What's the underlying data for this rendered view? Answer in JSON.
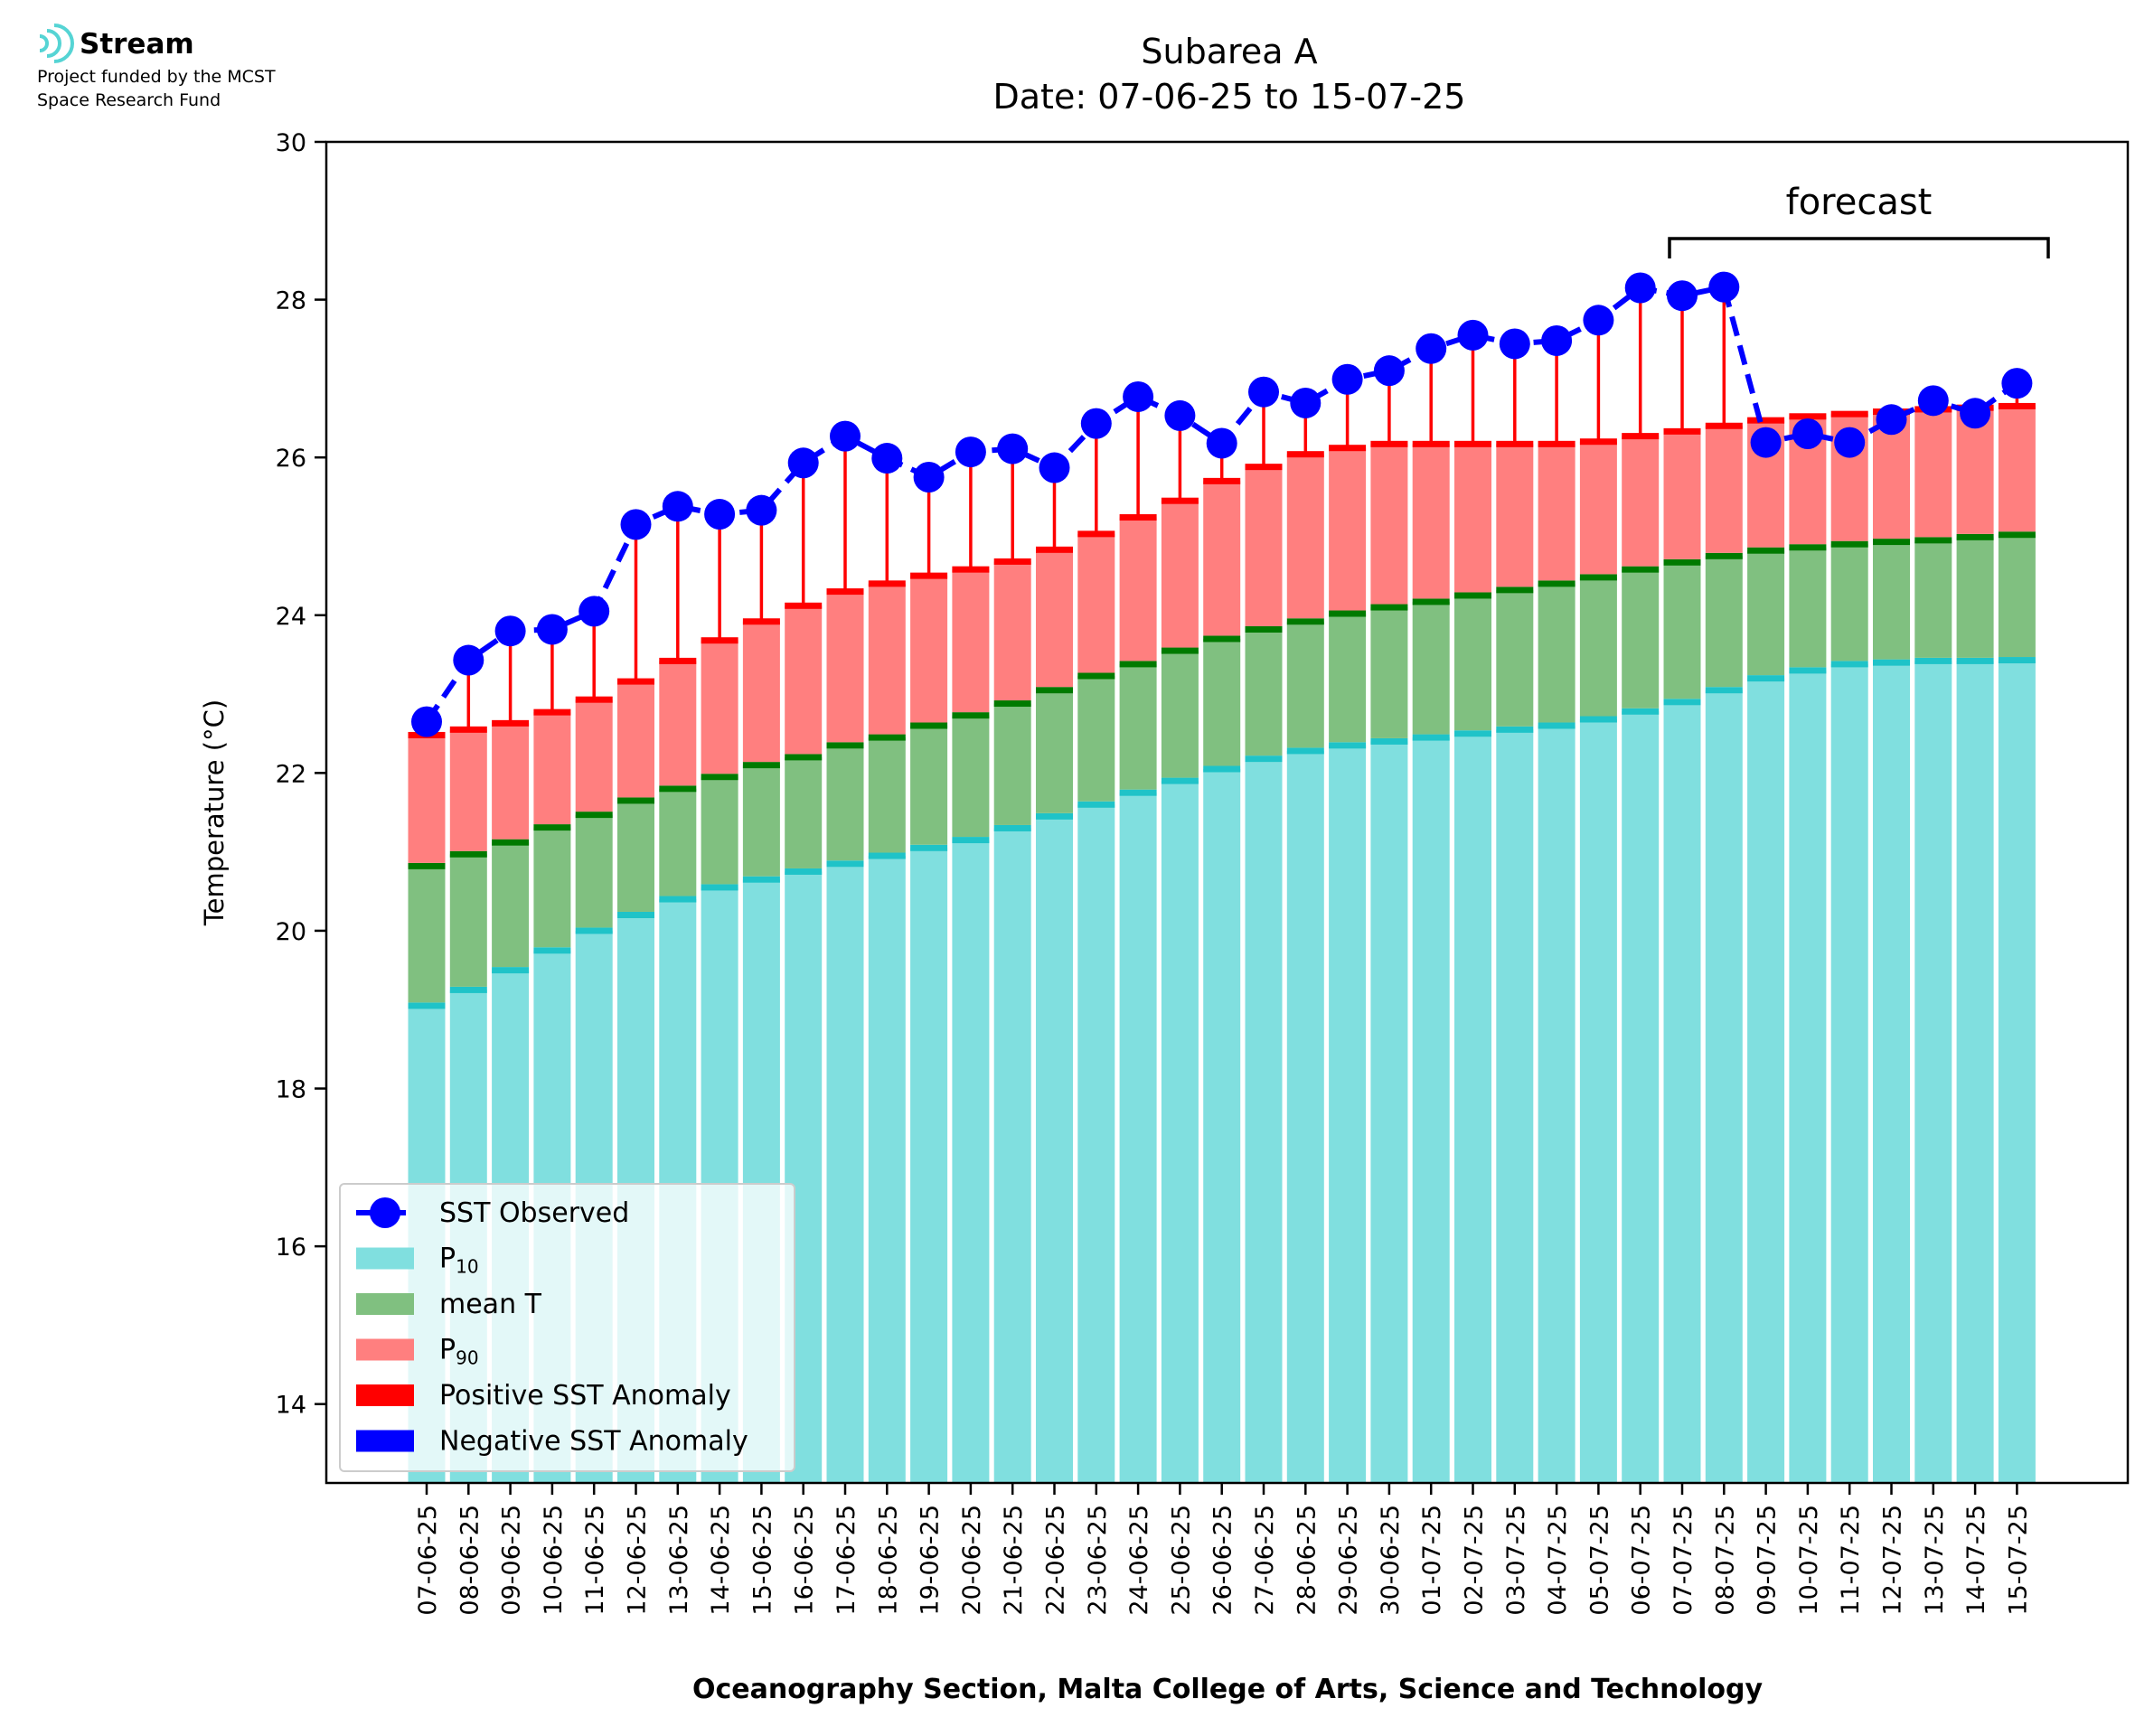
{
  "logo": {
    "name": "Stream",
    "line1": "Project funded by the MCST",
    "line2": "Space Research Fund"
  },
  "colors": {
    "p10": "#80dfdf",
    "p10_cap": "#1fc3c8",
    "mean": "#80c080",
    "mean_cap": "#007a00",
    "p90": "#ff7f7f",
    "p90_cap": "#ff0000",
    "anomaly_pos": "#ff0000",
    "anomaly_neg": "#0000ff",
    "observed": "#0000ff",
    "logo": "#55d4d4"
  },
  "chart_data": {
    "type": "bar",
    "title": "Subarea A",
    "subtitle": "Date: 07-06-25 to 15-07-25",
    "xlabel": "Oceanography Section, Malta College of Arts, Science and Technology",
    "ylabel": "Temperature (°C)",
    "ylim": [
      13,
      30
    ],
    "yticks": [
      14,
      16,
      18,
      20,
      22,
      24,
      26,
      28,
      30
    ],
    "grid": false,
    "legend_position": "lower-left",
    "forecast_label": "forecast",
    "forecast_range": [
      "06-07-25",
      "15-07-25"
    ],
    "categories": [
      "07-06-25",
      "08-06-25",
      "09-06-25",
      "10-06-25",
      "11-06-25",
      "12-06-25",
      "13-06-25",
      "14-06-25",
      "15-06-25",
      "16-06-25",
      "17-06-25",
      "18-06-25",
      "19-06-25",
      "20-06-25",
      "21-06-25",
      "22-06-25",
      "23-06-25",
      "24-06-25",
      "25-06-25",
      "26-06-25",
      "27-06-25",
      "28-06-25",
      "29-06-25",
      "30-06-25",
      "01-07-25",
      "02-07-25",
      "03-07-25",
      "04-07-25",
      "05-07-25",
      "06-07-25",
      "07-07-25",
      "08-07-25",
      "09-07-25",
      "10-07-25",
      "11-07-25",
      "12-07-25",
      "13-07-25",
      "14-07-25",
      "15-07-25"
    ],
    "series": [
      {
        "name": "P10",
        "values": [
          19.05,
          19.25,
          19.5,
          19.75,
          20.0,
          20.2,
          20.4,
          20.55,
          20.65,
          20.75,
          20.85,
          20.95,
          21.05,
          21.15,
          21.3,
          21.45,
          21.6,
          21.75,
          21.9,
          22.05,
          22.18,
          22.28,
          22.35,
          22.4,
          22.45,
          22.5,
          22.55,
          22.6,
          22.68,
          22.78,
          22.9,
          23.05,
          23.2,
          23.3,
          23.38,
          23.4,
          23.42,
          23.42,
          23.43
        ]
      },
      {
        "name": "mean T",
        "values": [
          20.82,
          20.97,
          21.12,
          21.31,
          21.47,
          21.65,
          21.8,
          21.95,
          22.1,
          22.2,
          22.35,
          22.45,
          22.6,
          22.73,
          22.88,
          23.05,
          23.23,
          23.38,
          23.55,
          23.7,
          23.82,
          23.92,
          24.02,
          24.1,
          24.17,
          24.25,
          24.32,
          24.4,
          24.48,
          24.58,
          24.67,
          24.75,
          24.82,
          24.86,
          24.9,
          24.93,
          24.95,
          24.99,
          25.02
        ]
      },
      {
        "name": "P90",
        "values": [
          22.48,
          22.55,
          22.63,
          22.77,
          22.93,
          23.16,
          23.42,
          23.68,
          23.92,
          24.12,
          24.3,
          24.4,
          24.5,
          24.58,
          24.68,
          24.83,
          25.03,
          25.24,
          25.45,
          25.7,
          25.88,
          26.04,
          26.12,
          26.17,
          26.17,
          26.17,
          26.17,
          26.17,
          26.2,
          26.27,
          26.33,
          26.4,
          26.47,
          26.52,
          26.55,
          26.58,
          26.61,
          26.63,
          26.65
        ]
      },
      {
        "name": "SST Observed",
        "values": [
          22.65,
          23.43,
          23.8,
          23.82,
          24.05,
          25.15,
          25.38,
          25.28,
          25.33,
          25.93,
          26.27,
          25.99,
          25.75,
          26.07,
          26.11,
          25.87,
          26.43,
          26.77,
          26.53,
          26.18,
          26.83,
          26.69,
          26.99,
          27.1,
          27.38,
          27.55,
          27.44,
          27.48,
          27.74,
          28.15,
          28.05,
          28.16,
          26.19,
          26.3,
          26.19,
          26.48,
          26.72,
          26.56,
          26.94
        ]
      }
    ],
    "legend": [
      {
        "label": "SST Observed",
        "kind": "line-marker"
      },
      {
        "label": "P",
        "sub": "10",
        "kind": "patch",
        "color": "#80dfdf"
      },
      {
        "label": "mean T",
        "kind": "patch",
        "color": "#80c080"
      },
      {
        "label": "P",
        "sub": "90",
        "kind": "patch",
        "color": "#ff7f7f"
      },
      {
        "label": "Positive SST Anomaly",
        "kind": "patch",
        "color": "#ff0000"
      },
      {
        "label": "Negative SST Anomaly",
        "kind": "patch",
        "color": "#0000ff"
      }
    ]
  }
}
